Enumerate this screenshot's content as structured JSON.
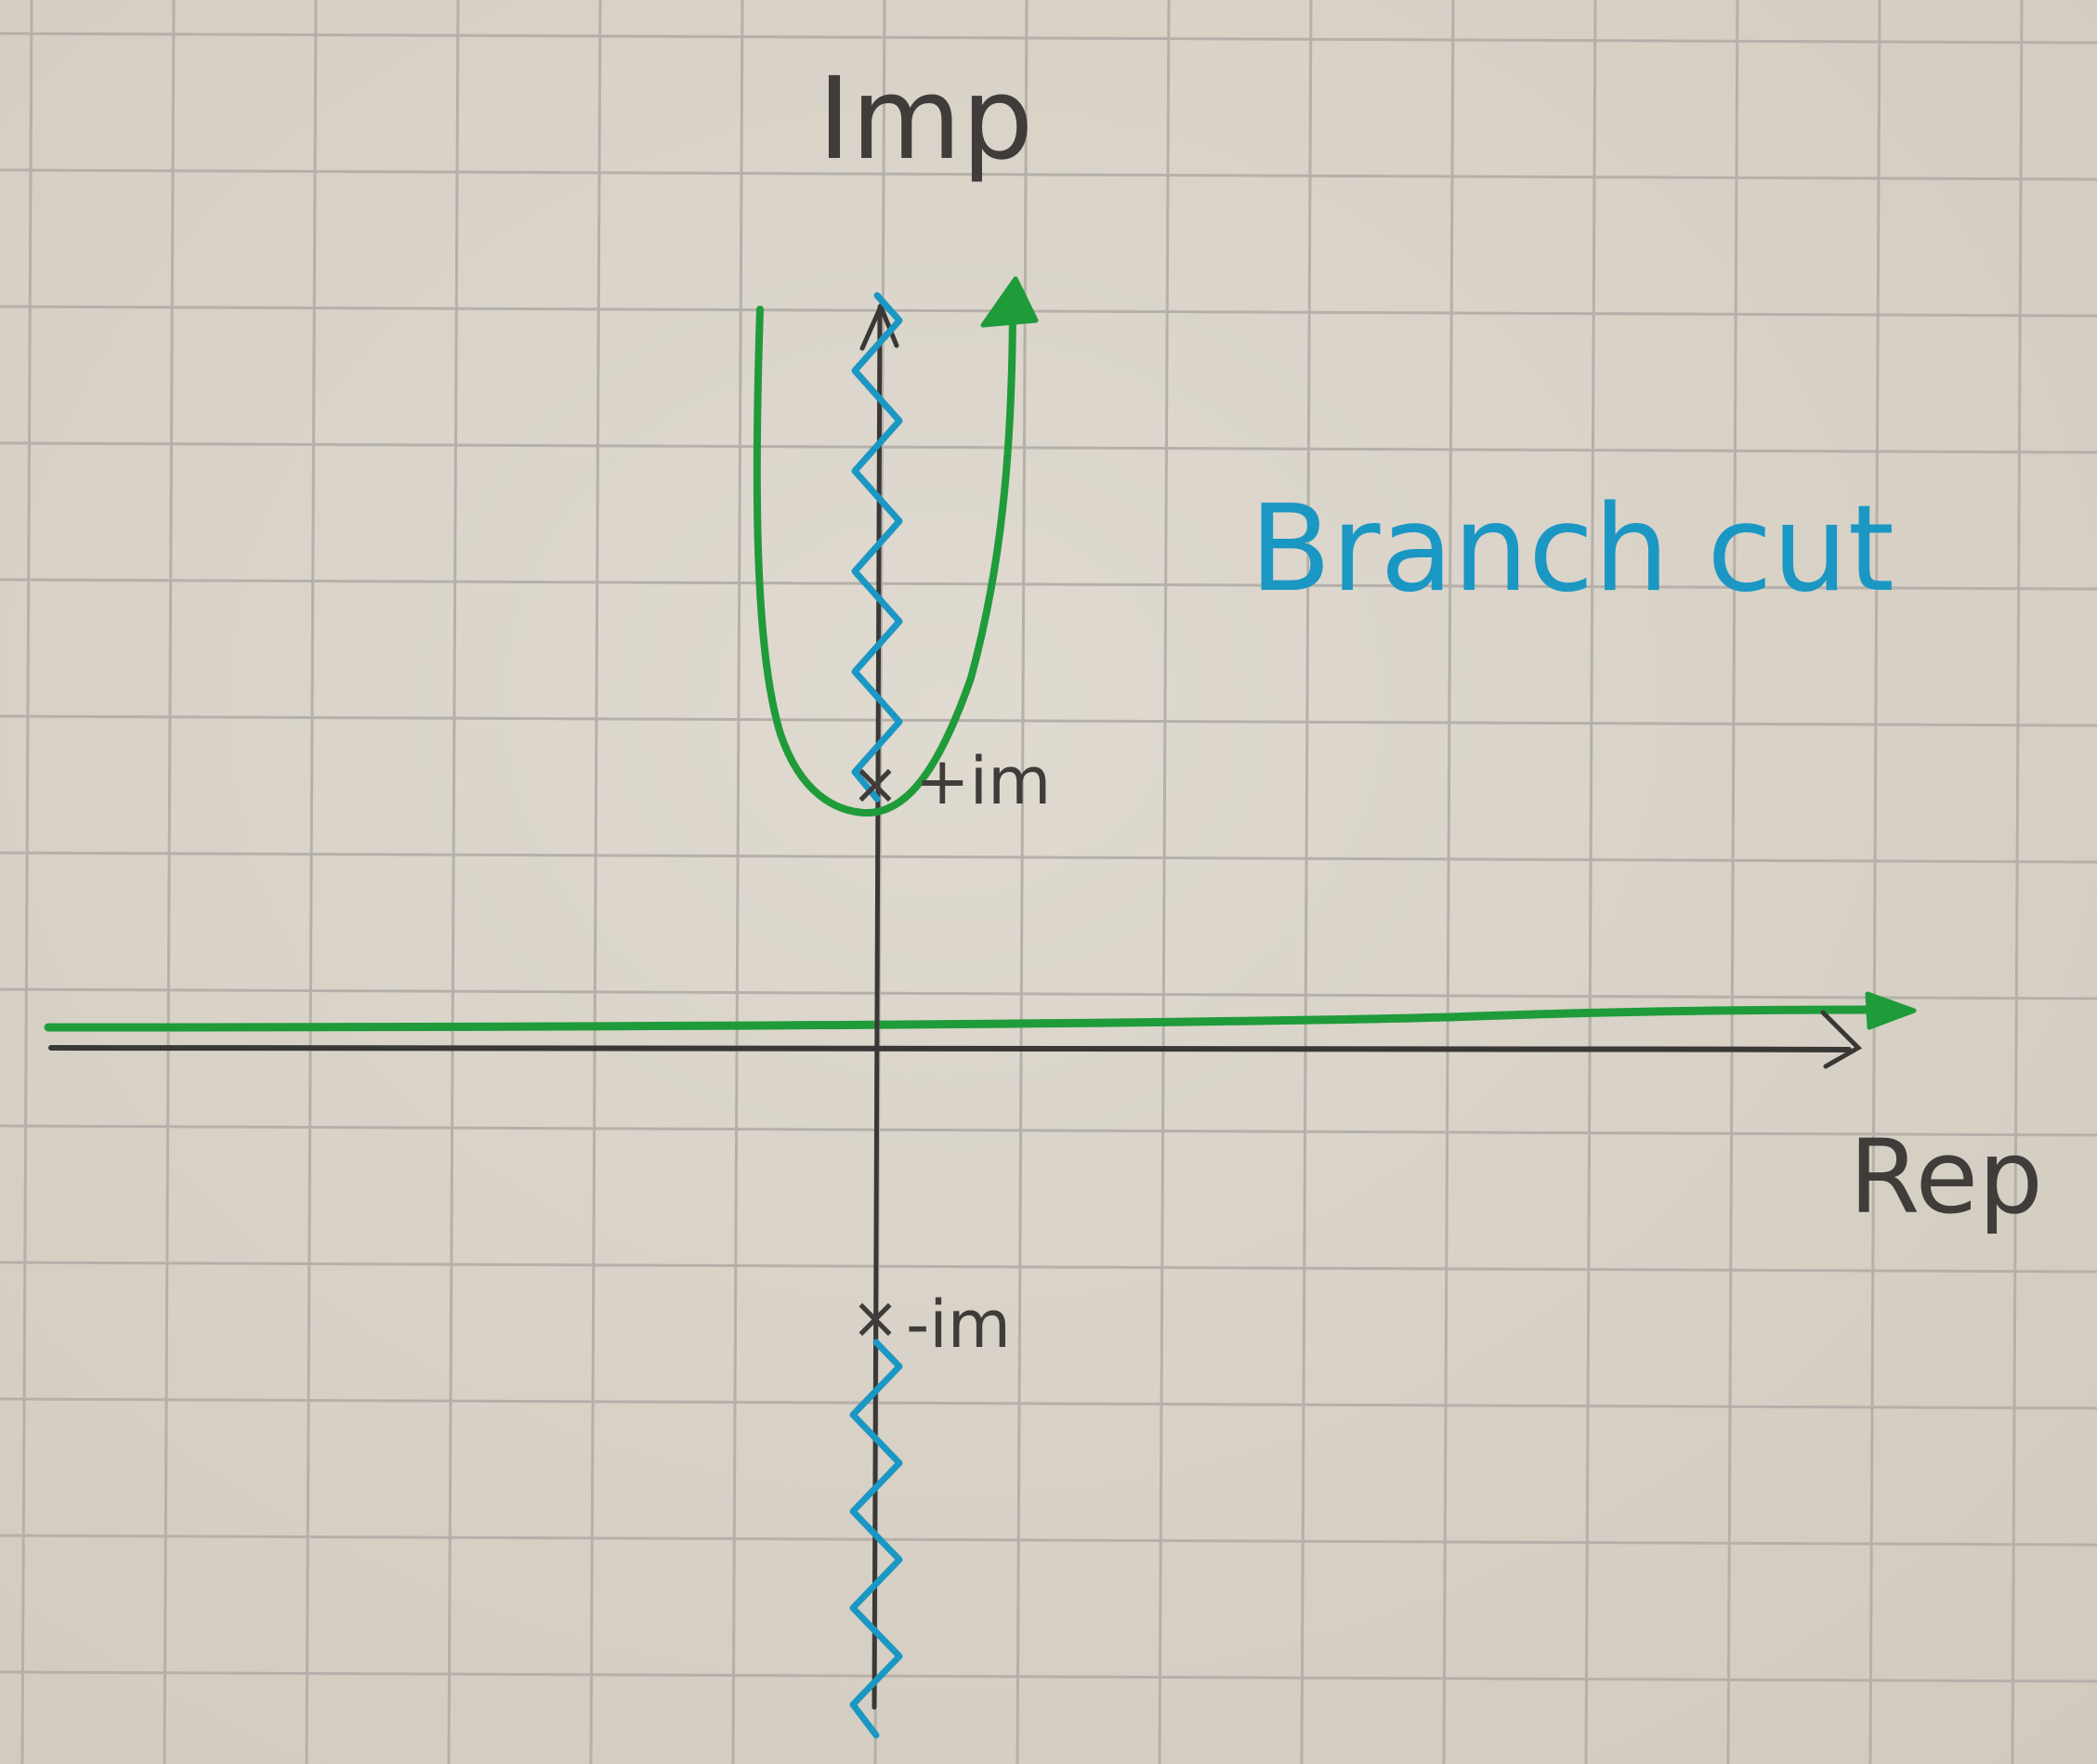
{
  "diagram": {
    "labels": {
      "imaginary_axis": "Imp",
      "real_axis": "Rep",
      "upper_branch_point": "+im",
      "lower_branch_point": "-im",
      "branch_cut_caption": "Branch cut"
    },
    "branch_point_marker": "×",
    "colors": {
      "paper": "#d9d3c8",
      "grid": "#b5b0aa",
      "axes": "#3a3836",
      "branch_cut": "#1b97c4",
      "contour": "#1f9b3a",
      "pencil_text": "#3f3c39"
    }
  }
}
